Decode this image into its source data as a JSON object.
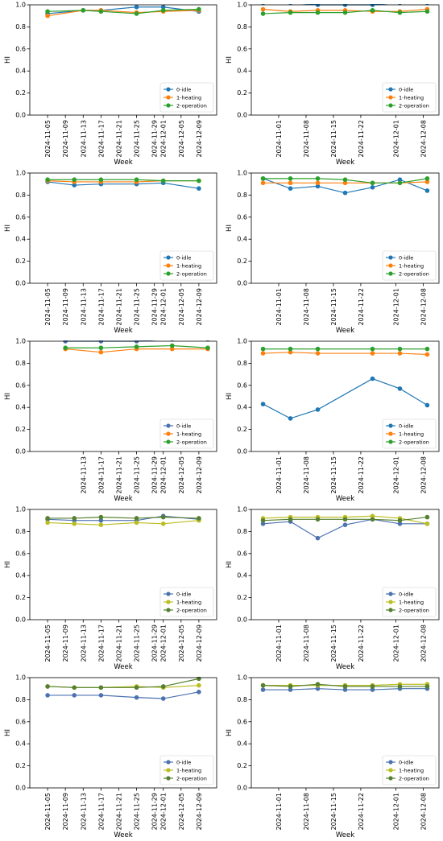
{
  "figure": {
    "x_dates_left": [
      "2024-11-05",
      "2024-11-09",
      "2024-11-13",
      "2024-11-17",
      "2024-11-21",
      "2024-11-25",
      "2024-11-29",
      "2024-12-01",
      "2024-12-05",
      "2024-12-09"
    ],
    "x_dates_right": [
      "2024-11-01",
      "2024-11-08",
      "2024-11-15",
      "2024-11-22",
      "2024-12-01",
      "2024-12-08"
    ]
  },
  "chart_data": [
    {
      "type": "line",
      "panel": "row1-left",
      "xlabel": "Week",
      "ylabel": "HI",
      "ylim": [
        0,
        1.0
      ],
      "yticks": [
        "0.0",
        "0.2",
        "0.4",
        "0.6",
        "0.8",
        "1.0"
      ],
      "xticks": [
        "2024-11-05",
        "2024-11-09",
        "2024-11-13",
        "2024-11-17",
        "2024-11-21",
        "2024-11-25",
        "2024-11-29",
        "2024-12-01",
        "2024-12-05",
        "2024-12-09"
      ],
      "legend": "lower right",
      "x": [
        "2024-11-05",
        "2024-11-13",
        "2024-11-17",
        "2024-11-25",
        "2024-12-01",
        "2024-12-09"
      ],
      "series": [
        {
          "name": "0-idle",
          "color": "#1f77b4",
          "values": [
            0.92,
            0.95,
            0.95,
            0.98,
            0.98,
            0.94
          ]
        },
        {
          "name": "1-heating",
          "color": "#ff7f0e",
          "values": [
            0.9,
            0.95,
            0.95,
            0.93,
            0.94,
            0.95
          ]
        },
        {
          "name": "2-operation",
          "color": "#2ca02c",
          "values": [
            0.94,
            0.95,
            0.94,
            0.92,
            0.95,
            0.96
          ]
        }
      ]
    },
    {
      "type": "line",
      "panel": "row1-right",
      "xlabel": "Week",
      "ylabel": "HI",
      "ylim": [
        0,
        1.0
      ],
      "yticks": [
        "0.0",
        "0.2",
        "0.4",
        "0.6",
        "0.8",
        "1.0"
      ],
      "xticks": [
        "2024-11-01",
        "2024-11-08",
        "2024-11-15",
        "2024-11-22",
        "2024-12-01",
        "2024-12-08"
      ],
      "legend": "lower right",
      "x": [
        "2024-10-28",
        "2024-11-04",
        "2024-11-11",
        "2024-11-18",
        "2024-11-25",
        "2024-12-02",
        "2024-12-09"
      ],
      "series": [
        {
          "name": "0-idle",
          "color": "#1f77b4",
          "values": [
            1.02,
            1.02,
            1.0,
            1.0,
            1.0,
            1.02,
            1.02
          ]
        },
        {
          "name": "1-heating",
          "color": "#ff7f0e",
          "values": [
            0.96,
            0.94,
            0.95,
            0.95,
            0.94,
            0.94,
            0.96
          ]
        },
        {
          "name": "2-operation",
          "color": "#2ca02c",
          "values": [
            0.92,
            0.93,
            0.93,
            0.93,
            0.95,
            0.93,
            0.94
          ]
        }
      ]
    },
    {
      "type": "line",
      "panel": "row2-left",
      "xlabel": "Week",
      "ylabel": "HI",
      "ylim": [
        0,
        1.0
      ],
      "yticks": [
        "0.0",
        "0.2",
        "0.4",
        "0.6",
        "0.8",
        "1.0"
      ],
      "xticks": [
        "2024-11-05",
        "2024-11-09",
        "2024-11-13",
        "2024-11-17",
        "2024-11-21",
        "2024-11-25",
        "2024-11-29",
        "2024-12-01",
        "2024-12-05",
        "2024-12-09"
      ],
      "legend": "lower right",
      "x": [
        "2024-11-05",
        "2024-11-11",
        "2024-11-17",
        "2024-11-25",
        "2024-12-01",
        "2024-12-09"
      ],
      "series": [
        {
          "name": "0-idle",
          "color": "#1f77b4",
          "values": [
            0.92,
            0.89,
            0.9,
            0.9,
            0.91,
            0.86
          ]
        },
        {
          "name": "1-heating",
          "color": "#ff7f0e",
          "values": [
            0.93,
            0.92,
            0.92,
            0.92,
            0.93,
            0.93
          ]
        },
        {
          "name": "2-operation",
          "color": "#2ca02c",
          "values": [
            0.94,
            0.94,
            0.94,
            0.94,
            0.93,
            0.93
          ]
        }
      ]
    },
    {
      "type": "line",
      "panel": "row2-right",
      "xlabel": "Week",
      "ylabel": "HI",
      "ylim": [
        0,
        1.0
      ],
      "yticks": [
        "0.0",
        "0.2",
        "0.4",
        "0.6",
        "0.8",
        "1.0"
      ],
      "xticks": [
        "2024-11-01",
        "2024-11-08",
        "2024-11-15",
        "2024-11-22",
        "2024-12-01",
        "2024-12-08"
      ],
      "legend": "lower right",
      "x": [
        "2024-10-28",
        "2024-11-04",
        "2024-11-11",
        "2024-11-18",
        "2024-11-25",
        "2024-12-02",
        "2024-12-09"
      ],
      "series": [
        {
          "name": "0-idle",
          "color": "#1f77b4",
          "values": [
            0.95,
            0.86,
            0.88,
            0.82,
            0.87,
            0.94,
            0.84
          ]
        },
        {
          "name": "1-heating",
          "color": "#ff7f0e",
          "values": [
            0.91,
            0.91,
            0.91,
            0.91,
            0.91,
            0.91,
            0.92
          ]
        },
        {
          "name": "2-operation",
          "color": "#2ca02c",
          "values": [
            0.95,
            0.95,
            0.95,
            0.94,
            0.91,
            0.91,
            0.95
          ]
        }
      ]
    },
    {
      "type": "line",
      "panel": "row3-left",
      "xlabel": "Week",
      "ylabel": "HI",
      "ylim": [
        0,
        1.0
      ],
      "yticks": [
        "0.0",
        "0.2",
        "0.4",
        "0.6",
        "0.8",
        "1.0"
      ],
      "xticks": [
        "2024-11-13",
        "2024-11-17",
        "2024-11-21",
        "2024-11-25",
        "2024-11-29",
        "2024-12-01",
        "2024-12-05",
        "2024-12-09"
      ],
      "legend": "lower right",
      "x": [
        "2024-11-09",
        "2024-11-17",
        "2024-11-25",
        "2024-12-03",
        "2024-12-11"
      ],
      "series": [
        {
          "name": "0-idle",
          "color": "#4c72b0",
          "values": [
            1.0,
            1.0,
            1.0,
            1.02,
            1.02
          ]
        },
        {
          "name": "1-heating",
          "color": "#ff7f0e",
          "values": [
            0.93,
            0.9,
            0.93,
            0.93,
            0.93
          ]
        },
        {
          "name": "2-operation",
          "color": "#2ca02c",
          "values": [
            0.94,
            0.94,
            0.95,
            0.96,
            0.94
          ]
        }
      ]
    },
    {
      "type": "line",
      "panel": "row3-right",
      "xlabel": "Week",
      "ylabel": "HI",
      "ylim": [
        0,
        1.0
      ],
      "yticks": [
        "0.0",
        "0.2",
        "0.4",
        "0.6",
        "0.8",
        "1.0"
      ],
      "xticks": [
        "2024-11-01",
        "2024-11-08",
        "2024-11-15",
        "2024-11-22",
        "2024-12-01",
        "2024-12-08"
      ],
      "legend": "lower right",
      "x": [
        "2024-10-28",
        "2024-11-04",
        "2024-11-11",
        "2024-11-25",
        "2024-12-02",
        "2024-12-09"
      ],
      "series": [
        {
          "name": "0-idle",
          "color": "#1f77b4",
          "values": [
            0.43,
            0.3,
            0.38,
            0.66,
            0.57,
            0.42
          ]
        },
        {
          "name": "1-heating",
          "color": "#ff7f0e",
          "values": [
            0.89,
            0.9,
            0.89,
            0.89,
            0.89,
            0.88
          ]
        },
        {
          "name": "2-operation",
          "color": "#2ca02c",
          "values": [
            0.93,
            0.93,
            0.93,
            0.93,
            0.93,
            0.93
          ]
        }
      ]
    },
    {
      "type": "line",
      "panel": "row4-left",
      "xlabel": "Week",
      "ylabel": "HI",
      "ylim": [
        0,
        1.0
      ],
      "yticks": [
        "0.0",
        "0.2",
        "0.4",
        "0.6",
        "0.8",
        "1.0"
      ],
      "xticks": [
        "2024-11-05",
        "2024-11-09",
        "2024-11-13",
        "2024-11-17",
        "2024-11-21",
        "2024-11-25",
        "2024-11-29",
        "2024-12-01",
        "2024-12-05",
        "2024-12-09"
      ],
      "legend": "lower right",
      "x": [
        "2024-11-05",
        "2024-11-11",
        "2024-11-17",
        "2024-11-25",
        "2024-12-01",
        "2024-12-09"
      ],
      "series": [
        {
          "name": "0-idle",
          "color": "#4c72b0",
          "values": [
            0.91,
            0.9,
            0.9,
            0.9,
            0.94,
            0.91
          ]
        },
        {
          "name": "1-heating",
          "color": "#bcbd22",
          "values": [
            0.88,
            0.87,
            0.86,
            0.88,
            0.87,
            0.9
          ]
        },
        {
          "name": "2-operation",
          "color": "#55802f",
          "values": [
            0.92,
            0.92,
            0.93,
            0.92,
            0.93,
            0.92
          ]
        }
      ]
    },
    {
      "type": "line",
      "panel": "row4-right",
      "xlabel": "Week",
      "ylabel": "HI",
      "ylim": [
        0,
        1.0
      ],
      "yticks": [
        "0.0",
        "0.2",
        "0.4",
        "0.6",
        "0.8",
        "1.0"
      ],
      "xticks": [
        "2024-11-01",
        "2024-11-08",
        "2024-11-15",
        "2024-11-22",
        "2024-12-01",
        "2024-12-08"
      ],
      "legend": "lower right",
      "x": [
        "2024-10-28",
        "2024-11-04",
        "2024-11-11",
        "2024-11-18",
        "2024-11-25",
        "2024-12-02",
        "2024-12-09"
      ],
      "series": [
        {
          "name": "0-idle",
          "color": "#4c72b0",
          "values": [
            0.87,
            0.89,
            0.74,
            0.86,
            0.91,
            0.87,
            0.87
          ]
        },
        {
          "name": "1-heating",
          "color": "#bcbd22",
          "values": [
            0.92,
            0.93,
            0.93,
            0.93,
            0.94,
            0.92,
            0.87
          ]
        },
        {
          "name": "2-operation",
          "color": "#55802f",
          "values": [
            0.9,
            0.91,
            0.91,
            0.91,
            0.91,
            0.9,
            0.93
          ]
        }
      ]
    },
    {
      "type": "line",
      "panel": "row5-left",
      "xlabel": "Week",
      "ylabel": "HI",
      "ylim": [
        0,
        1.0
      ],
      "yticks": [
        "0.0",
        "0.2",
        "0.4",
        "0.6",
        "0.8",
        "1.0"
      ],
      "xticks": [
        "2024-11-05",
        "2024-11-09",
        "2024-11-13",
        "2024-11-17",
        "2024-11-21",
        "2024-11-25",
        "2024-11-29",
        "2024-12-01",
        "2024-12-05",
        "2024-12-09"
      ],
      "legend": "lower right",
      "x": [
        "2024-11-05",
        "2024-11-11",
        "2024-11-17",
        "2024-11-25",
        "2024-12-01",
        "2024-12-09"
      ],
      "series": [
        {
          "name": "0-idle",
          "color": "#4c72b0",
          "values": [
            0.84,
            0.84,
            0.84,
            0.82,
            0.81,
            0.87
          ]
        },
        {
          "name": "1-heating",
          "color": "#bcbd22",
          "values": [
            0.92,
            0.91,
            0.91,
            0.92,
            0.91,
            0.93
          ]
        },
        {
          "name": "2-operation",
          "color": "#55802f",
          "values": [
            0.92,
            0.91,
            0.91,
            0.91,
            0.92,
            0.99
          ]
        }
      ]
    },
    {
      "type": "line",
      "panel": "row5-right",
      "xlabel": "Week",
      "ylabel": "HI",
      "ylim": [
        0,
        1.0
      ],
      "yticks": [
        "0.0",
        "0.2",
        "0.4",
        "0.6",
        "0.8",
        "1.0"
      ],
      "xticks": [
        "2024-11-01",
        "2024-11-08",
        "2024-11-15",
        "2024-11-22",
        "2024-12-01",
        "2024-12-08"
      ],
      "legend": "lower right",
      "x": [
        "2024-10-28",
        "2024-11-04",
        "2024-11-11",
        "2024-11-18",
        "2024-11-25",
        "2024-12-02",
        "2024-12-09"
      ],
      "series": [
        {
          "name": "0-idle",
          "color": "#4c72b0",
          "values": [
            0.89,
            0.89,
            0.9,
            0.89,
            0.89,
            0.9,
            0.9
          ]
        },
        {
          "name": "1-heating",
          "color": "#bcbd22",
          "values": [
            0.93,
            0.93,
            0.93,
            0.93,
            0.93,
            0.94,
            0.94
          ]
        },
        {
          "name": "2-operation",
          "color": "#55802f",
          "values": [
            0.93,
            0.92,
            0.94,
            0.92,
            0.92,
            0.92,
            0.92
          ]
        }
      ]
    }
  ]
}
